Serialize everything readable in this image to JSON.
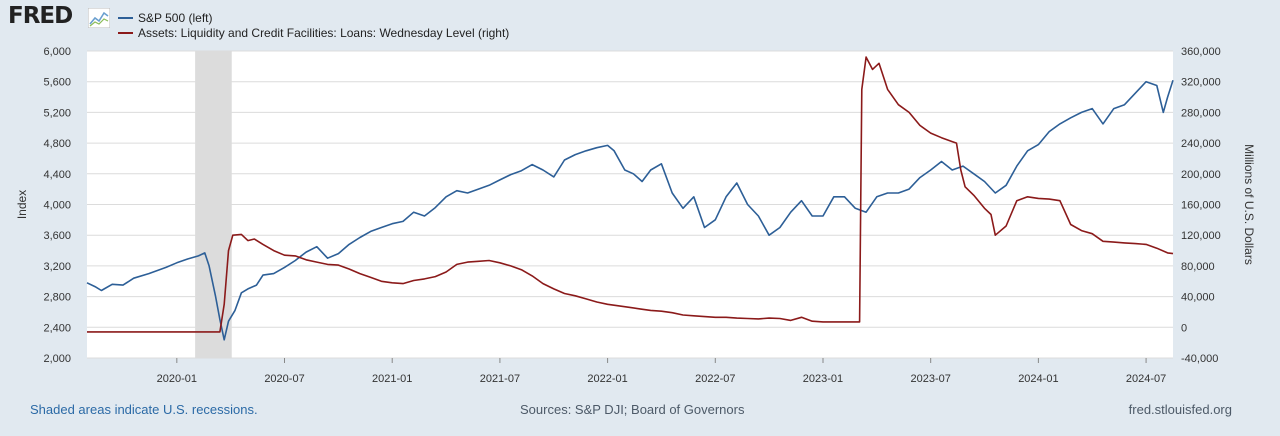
{
  "header": {
    "logo_text": "FRED",
    "logo_icon": "chart-trend-icon"
  },
  "footer": {
    "recession_note": "Shaded areas indicate U.S. recessions.",
    "sources": "Sources: S&P DJI; Board of Governors",
    "site": "fred.stlouisfed.org"
  },
  "colors": {
    "sp500": "#2d5f97",
    "loans": "#8b1a1a",
    "plot_bg": "#ffffff",
    "grid": "#dcdcdc",
    "recession": "#dcdcdc"
  },
  "chart_data": {
    "type": "line",
    "x_range": [
      2019.583,
      2024.625
    ],
    "x_ticks": [
      {
        "x": 2020.0,
        "label": "2020-01"
      },
      {
        "x": 2020.5,
        "label": "2020-07"
      },
      {
        "x": 2021.0,
        "label": "2021-01"
      },
      {
        "x": 2021.5,
        "label": "2021-07"
      },
      {
        "x": 2022.0,
        "label": "2022-01"
      },
      {
        "x": 2022.5,
        "label": "2022-07"
      },
      {
        "x": 2023.0,
        "label": "2023-01"
      },
      {
        "x": 2023.5,
        "label": "2023-07"
      },
      {
        "x": 2024.0,
        "label": "2024-01"
      },
      {
        "x": 2024.5,
        "label": "2024-07"
      }
    ],
    "y_left": {
      "label": "Index",
      "range": [
        2000,
        6000
      ],
      "ticks": [
        2000,
        2400,
        2800,
        3200,
        3600,
        4000,
        4400,
        4800,
        5200,
        5600,
        6000
      ],
      "tick_labels": [
        "2,000",
        "2,400",
        "2,800",
        "3,200",
        "3,600",
        "4,000",
        "4,400",
        "4,800",
        "5,200",
        "5,600",
        "6,000"
      ]
    },
    "y_right": {
      "label": "Millions of U.S. Dollars",
      "range": [
        -40000,
        360000
      ],
      "ticks": [
        -40000,
        0,
        40000,
        80000,
        120000,
        160000,
        200000,
        240000,
        280000,
        320000,
        360000
      ],
      "tick_labels": [
        "-40,000",
        "0",
        "40,000",
        "80,000",
        "120,000",
        "160,000",
        "200,000",
        "240,000",
        "280,000",
        "320,000",
        "360,000"
      ]
    },
    "recessions": [
      {
        "start": 2020.085,
        "end": 2020.255
      }
    ],
    "series": [
      {
        "name": "S&P 500 (left)",
        "axis": "left",
        "color": "#2d5f97",
        "points": [
          [
            2019.583,
            2980
          ],
          [
            2019.62,
            2930
          ],
          [
            2019.65,
            2880
          ],
          [
            2019.7,
            2960
          ],
          [
            2019.75,
            2950
          ],
          [
            2019.8,
            3040
          ],
          [
            2019.87,
            3100
          ],
          [
            2019.95,
            3180
          ],
          [
            2020.0,
            3240
          ],
          [
            2020.05,
            3290
          ],
          [
            2020.1,
            3330
          ],
          [
            2020.13,
            3370
          ],
          [
            2020.15,
            3200
          ],
          [
            2020.18,
            2800
          ],
          [
            2020.2,
            2500
          ],
          [
            2020.22,
            2237
          ],
          [
            2020.24,
            2480
          ],
          [
            2020.27,
            2620
          ],
          [
            2020.3,
            2850
          ],
          [
            2020.33,
            2900
          ],
          [
            2020.37,
            2950
          ],
          [
            2020.4,
            3080
          ],
          [
            2020.45,
            3100
          ],
          [
            2020.5,
            3180
          ],
          [
            2020.55,
            3270
          ],
          [
            2020.6,
            3380
          ],
          [
            2020.65,
            3450
          ],
          [
            2020.7,
            3300
          ],
          [
            2020.75,
            3360
          ],
          [
            2020.8,
            3480
          ],
          [
            2020.85,
            3570
          ],
          [
            2020.9,
            3650
          ],
          [
            2020.95,
            3700
          ],
          [
            2021.0,
            3750
          ],
          [
            2021.05,
            3780
          ],
          [
            2021.1,
            3900
          ],
          [
            2021.15,
            3850
          ],
          [
            2021.2,
            3960
          ],
          [
            2021.25,
            4100
          ],
          [
            2021.3,
            4180
          ],
          [
            2021.35,
            4150
          ],
          [
            2021.4,
            4200
          ],
          [
            2021.45,
            4250
          ],
          [
            2021.5,
            4320
          ],
          [
            2021.55,
            4390
          ],
          [
            2021.6,
            4440
          ],
          [
            2021.65,
            4520
          ],
          [
            2021.7,
            4450
          ],
          [
            2021.75,
            4360
          ],
          [
            2021.8,
            4580
          ],
          [
            2021.85,
            4650
          ],
          [
            2021.9,
            4700
          ],
          [
            2021.95,
            4740
          ],
          [
            2022.0,
            4770
          ],
          [
            2022.03,
            4700
          ],
          [
            2022.08,
            4450
          ],
          [
            2022.12,
            4400
          ],
          [
            2022.16,
            4300
          ],
          [
            2022.2,
            4450
          ],
          [
            2022.25,
            4530
          ],
          [
            2022.3,
            4150
          ],
          [
            2022.35,
            3950
          ],
          [
            2022.4,
            4100
          ],
          [
            2022.45,
            3700
          ],
          [
            2022.5,
            3800
          ],
          [
            2022.55,
            4100
          ],
          [
            2022.6,
            4280
          ],
          [
            2022.65,
            4000
          ],
          [
            2022.7,
            3850
          ],
          [
            2022.75,
            3600
          ],
          [
            2022.8,
            3700
          ],
          [
            2022.85,
            3900
          ],
          [
            2022.9,
            4050
          ],
          [
            2022.95,
            3850
          ],
          [
            2023.0,
            3850
          ],
          [
            2023.05,
            4100
          ],
          [
            2023.1,
            4100
          ],
          [
            2023.15,
            3950
          ],
          [
            2023.2,
            3900
          ],
          [
            2023.25,
            4100
          ],
          [
            2023.3,
            4150
          ],
          [
            2023.35,
            4150
          ],
          [
            2023.4,
            4200
          ],
          [
            2023.45,
            4350
          ],
          [
            2023.5,
            4450
          ],
          [
            2023.55,
            4560
          ],
          [
            2023.6,
            4450
          ],
          [
            2023.65,
            4500
          ],
          [
            2023.7,
            4400
          ],
          [
            2023.75,
            4300
          ],
          [
            2023.8,
            4150
          ],
          [
            2023.85,
            4250
          ],
          [
            2023.9,
            4500
          ],
          [
            2023.95,
            4700
          ],
          [
            2024.0,
            4780
          ],
          [
            2024.05,
            4950
          ],
          [
            2024.1,
            5050
          ],
          [
            2024.15,
            5130
          ],
          [
            2024.2,
            5200
          ],
          [
            2024.25,
            5250
          ],
          [
            2024.3,
            5050
          ],
          [
            2024.35,
            5250
          ],
          [
            2024.4,
            5300
          ],
          [
            2024.45,
            5450
          ],
          [
            2024.5,
            5600
          ],
          [
            2024.55,
            5550
          ],
          [
            2024.58,
            5200
          ],
          [
            2024.6,
            5400
          ],
          [
            2024.625,
            5620
          ]
        ]
      },
      {
        "name": "Assets: Liquidity and Credit Facilities: Loans: Wednesday Level (right)",
        "axis": "right",
        "color": "#8b1a1a",
        "points": [
          [
            2019.583,
            -6000
          ],
          [
            2020.2,
            -6000
          ],
          [
            2020.22,
            30000
          ],
          [
            2020.24,
            100000
          ],
          [
            2020.26,
            120000
          ],
          [
            2020.3,
            121000
          ],
          [
            2020.33,
            113000
          ],
          [
            2020.36,
            115000
          ],
          [
            2020.4,
            108000
          ],
          [
            2020.45,
            100000
          ],
          [
            2020.5,
            94000
          ],
          [
            2020.55,
            93000
          ],
          [
            2020.6,
            88000
          ],
          [
            2020.65,
            85000
          ],
          [
            2020.7,
            82000
          ],
          [
            2020.75,
            81000
          ],
          [
            2020.8,
            76000
          ],
          [
            2020.85,
            70000
          ],
          [
            2020.9,
            65000
          ],
          [
            2020.95,
            60000
          ],
          [
            2021.0,
            58000
          ],
          [
            2021.05,
            57000
          ],
          [
            2021.1,
            61000
          ],
          [
            2021.15,
            63000
          ],
          [
            2021.2,
            66000
          ],
          [
            2021.25,
            72000
          ],
          [
            2021.3,
            82000
          ],
          [
            2021.35,
            85000
          ],
          [
            2021.4,
            86000
          ],
          [
            2021.45,
            87000
          ],
          [
            2021.5,
            84000
          ],
          [
            2021.55,
            80000
          ],
          [
            2021.6,
            75000
          ],
          [
            2021.65,
            67000
          ],
          [
            2021.7,
            57000
          ],
          [
            2021.75,
            50000
          ],
          [
            2021.8,
            44000
          ],
          [
            2021.85,
            41000
          ],
          [
            2021.9,
            37000
          ],
          [
            2021.95,
            33000
          ],
          [
            2022.0,
            30000
          ],
          [
            2022.05,
            28000
          ],
          [
            2022.1,
            26000
          ],
          [
            2022.15,
            24000
          ],
          [
            2022.2,
            22000
          ],
          [
            2022.25,
            21000
          ],
          [
            2022.3,
            19000
          ],
          [
            2022.35,
            16000
          ],
          [
            2022.4,
            15000
          ],
          [
            2022.45,
            14000
          ],
          [
            2022.5,
            13000
          ],
          [
            2022.55,
            13000
          ],
          [
            2022.6,
            12000
          ],
          [
            2022.65,
            11500
          ],
          [
            2022.7,
            11000
          ],
          [
            2022.75,
            12000
          ],
          [
            2022.8,
            11500
          ],
          [
            2022.85,
            9000
          ],
          [
            2022.9,
            13000
          ],
          [
            2022.95,
            8000
          ],
          [
            2023.0,
            7000
          ],
          [
            2023.05,
            7000
          ],
          [
            2023.1,
            7000
          ],
          [
            2023.17,
            7000
          ],
          [
            2023.18,
            310000
          ],
          [
            2023.2,
            352000
          ],
          [
            2023.23,
            336000
          ],
          [
            2023.26,
            344000
          ],
          [
            2023.3,
            310000
          ],
          [
            2023.35,
            290000
          ],
          [
            2023.4,
            280000
          ],
          [
            2023.45,
            263000
          ],
          [
            2023.5,
            253000
          ],
          [
            2023.55,
            247000
          ],
          [
            2023.6,
            242000
          ],
          [
            2023.62,
            240000
          ],
          [
            2023.64,
            205000
          ],
          [
            2023.66,
            183000
          ],
          [
            2023.7,
            172000
          ],
          [
            2023.75,
            155000
          ],
          [
            2023.78,
            147000
          ],
          [
            2023.8,
            120000
          ],
          [
            2023.85,
            132000
          ],
          [
            2023.9,
            165000
          ],
          [
            2023.95,
            170000
          ],
          [
            2024.0,
            168000
          ],
          [
            2024.05,
            167000
          ],
          [
            2024.1,
            165000
          ],
          [
            2024.15,
            134000
          ],
          [
            2024.2,
            126000
          ],
          [
            2024.25,
            122000
          ],
          [
            2024.3,
            112000
          ],
          [
            2024.35,
            111000
          ],
          [
            2024.4,
            110000
          ],
          [
            2024.45,
            109000
          ],
          [
            2024.5,
            108000
          ],
          [
            2024.55,
            103000
          ],
          [
            2024.6,
            97000
          ],
          [
            2024.625,
            96000
          ]
        ]
      }
    ]
  }
}
